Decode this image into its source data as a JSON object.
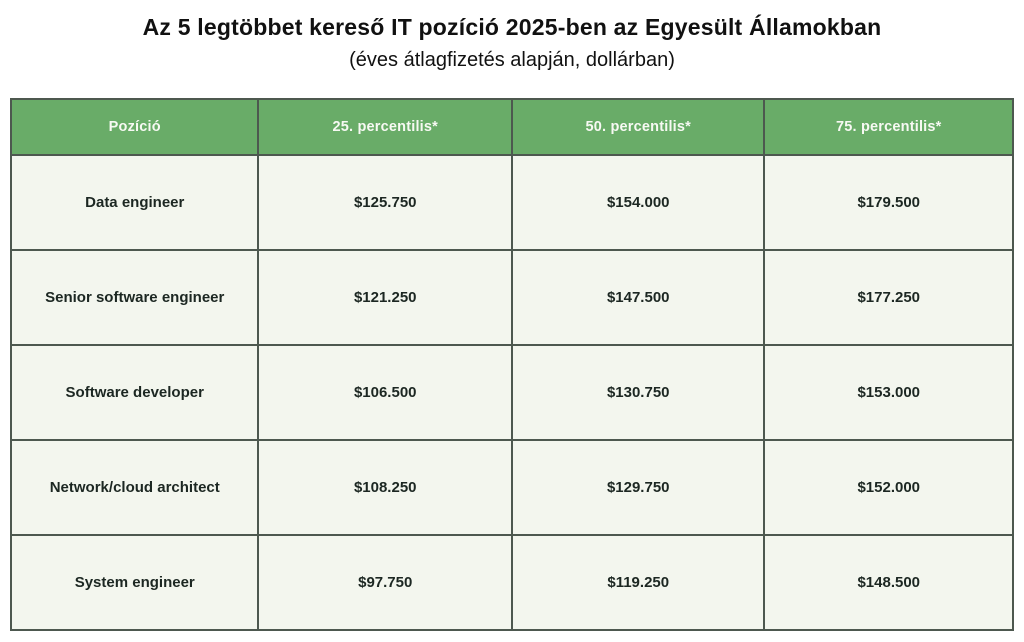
{
  "title": "Az 5 legtöbbet kereső IT pozíció 2025-ben az Egyesült Államokban",
  "subtitle": "(éves átlagfizetés alapján, dollárban)",
  "colors": {
    "header_bg": "#69ac68",
    "header_text": "#f7f9f3",
    "cell_bg": "#f3f6ee",
    "border": "#4d584f",
    "body_text": "#1c2722",
    "page_bg": "#ffffff"
  },
  "table": {
    "headers": [
      "Pozíció",
      "25. percentilis*",
      "50. percentilis*",
      "75. percentilis*"
    ],
    "rows": [
      [
        "Data engineer",
        "$125.750",
        "$154.000",
        "$179.500"
      ],
      [
        "Senior software engineer",
        "$121.250",
        "$147.500",
        "$177.250"
      ],
      [
        "Software developer",
        "$106.500",
        "$130.750",
        "$153.000"
      ],
      [
        "Network/cloud architect",
        "$108.250",
        "$129.750",
        "$152.000"
      ],
      [
        "System engineer",
        "$97.750",
        "$119.250",
        "$148.500"
      ]
    ]
  },
  "chart_data": {
    "type": "table",
    "title": "Az 5 legtöbbet kereső IT pozíció 2025-ben az Egyesült Államokban",
    "subtitle": "(éves átlagfizetés alapján, dollárban)",
    "columns": [
      "Pozíció",
      "25. percentilis*",
      "50. percentilis*",
      "75. percentilis*"
    ],
    "rows": [
      {
        "position": "Data engineer",
        "p25": 125750,
        "p50": 154000,
        "p75": 179500
      },
      {
        "position": "Senior software engineer",
        "p25": 121250,
        "p50": 147500,
        "p75": 177250
      },
      {
        "position": "Software developer",
        "p25": 106500,
        "p50": 130750,
        "p75": 153000
      },
      {
        "position": "Network/cloud architect",
        "p25": 108250,
        "p50": 129750,
        "p75": 152000
      },
      {
        "position": "System engineer",
        "p25": 97750,
        "p50": 119250,
        "p75": 148500
      }
    ],
    "currency": "USD",
    "layout": "header-row-green, body-rows-light, dark-borders"
  }
}
